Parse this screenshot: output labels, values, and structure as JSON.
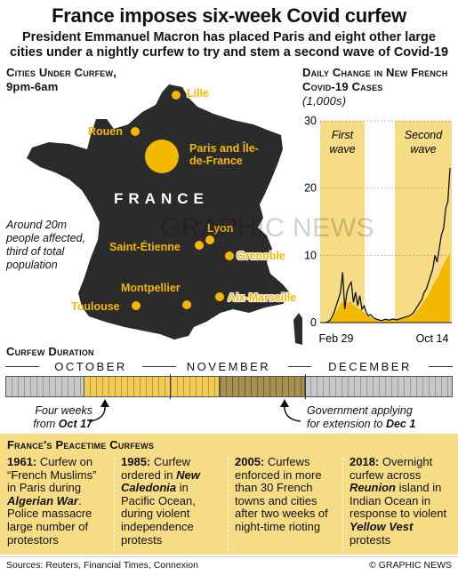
{
  "title": "France imposes six-week Covid curfew",
  "subtitle": "President Emmanuel Macron has placed Paris and eight other large cities under a nightly curfew to try and stem a second wave of Covid-19",
  "map": {
    "heading": "Cities Under Curfew,",
    "hours": "9pm-6am",
    "country_label": "FRANCE",
    "affected_note": "Around 20m people affected, third of total population",
    "cities": [
      {
        "name": "Lille"
      },
      {
        "name": "Rouen"
      },
      {
        "name": "Paris and Île-de-France"
      },
      {
        "name": "Lyon"
      },
      {
        "name": "Saint-Étienne"
      },
      {
        "name": "Grenoble"
      },
      {
        "name": "Montpellier"
      },
      {
        "name": "Aix-Marseille"
      },
      {
        "name": "Toulouse"
      }
    ],
    "colors": {
      "land": "#2b2b2b",
      "marker": "#f5b800"
    }
  },
  "chart": {
    "heading": "Daily Change in New French Covid-19 Cases",
    "unit": "(1,000s)",
    "first_wave_label": "First wave",
    "second_wave_label": "Second wave",
    "colors": {
      "band": "#f7dc86",
      "fill": "#f5b800",
      "line": "#111111"
    }
  },
  "chart_data": {
    "type": "area",
    "title": "Daily Change in New French Covid-19 Cases",
    "ylabel": "(1,000s)",
    "ylim": [
      0,
      30
    ],
    "yticks": [
      0,
      10,
      20,
      30
    ],
    "xtick_labels": [
      "Feb 29",
      "Oct 14"
    ],
    "annotations": [
      "First wave",
      "Second wave"
    ],
    "series": [
      {
        "values": [
          0,
          0.1,
          0.3,
          0.8,
          1.5,
          2.5,
          3.5,
          4.5,
          7.5,
          2,
          4.5,
          5.5,
          6,
          3,
          4.5,
          2.5,
          4,
          2,
          2.5,
          1.5,
          1,
          1.2,
          0.8,
          0.6,
          0.5,
          0.4,
          0.3,
          0.4,
          0.5,
          0.4,
          0.4,
          0.5,
          0.5,
          0.4,
          0.5,
          0.6,
          0.7,
          0.8,
          0.9,
          1,
          1.2,
          1.5,
          2,
          2.5,
          3,
          3.5,
          4.5,
          5,
          6,
          7,
          8,
          10,
          9,
          11,
          13,
          14,
          17,
          18,
          23
        ]
      },
      {
        "values": [
          0,
          0.1,
          0.2,
          0.5,
          1,
          1.6,
          2.2,
          2.8,
          3.2,
          2.5,
          2.9,
          3.1,
          3.0,
          2.6,
          2.4,
          2.1,
          2.0,
          1.7,
          1.5,
          1.2,
          0.9,
          0.8,
          0.6,
          0.5,
          0.4,
          0.35,
          0.3,
          0.3,
          0.35,
          0.35,
          0.35,
          0.4,
          0.4,
          0.4,
          0.45,
          0.5,
          0.55,
          0.65,
          0.75,
          0.85,
          1,
          1.2,
          1.5,
          1.9,
          2.3,
          2.7,
          3.2,
          3.7,
          4.2,
          4.8,
          5.5,
          6.2,
          6.6,
          7.2,
          8.0,
          8.6,
          9.3,
          9.8,
          10.3
        ]
      }
    ]
  },
  "duration": {
    "heading": "Curfew Duration",
    "months": [
      "OCTOBER",
      "NOVEMBER",
      "DECEMBER"
    ],
    "note_left_a": "Four weeks",
    "note_left_b": "from ",
    "note_left_date": "Oct 17",
    "note_right_a": "Government applying",
    "note_right_b": "for extension to ",
    "note_right_date": "Dec 1"
  },
  "history": {
    "heading": "France's Peacetime Curfews",
    "cards": [
      {
        "year": "1961:",
        "t1": " Curfew on “French Muslims” in Paris during ",
        "b1": "Algerian War",
        "t2": ". Police massacre large number of protestors",
        "b2": "",
        "t3": ""
      },
      {
        "year": "1985:",
        "t1": " Curfew ordered in ",
        "b1": "New Caledonia",
        "t2": " in Pacific Ocean, during violent independence protests",
        "b2": "",
        "t3": ""
      },
      {
        "year": "2005:",
        "t1": " Curfews enforced in more than 30 French towns and cities after two weeks of night-time rioting",
        "b1": "",
        "t2": "",
        "b2": "",
        "t3": ""
      },
      {
        "year": "2018:",
        "t1": " Overnight curfew across ",
        "b1": "Reunion",
        "t2": " island in Indian Ocean in response to violent ",
        "b2": "Yellow Vest",
        "t3": " protests"
      }
    ]
  },
  "footer": {
    "sources": "Sources: Reuters, Financial Times, Connexion",
    "credit": "© GRAPHIC NEWS"
  },
  "watermark": "GRAPHIC NEWS"
}
